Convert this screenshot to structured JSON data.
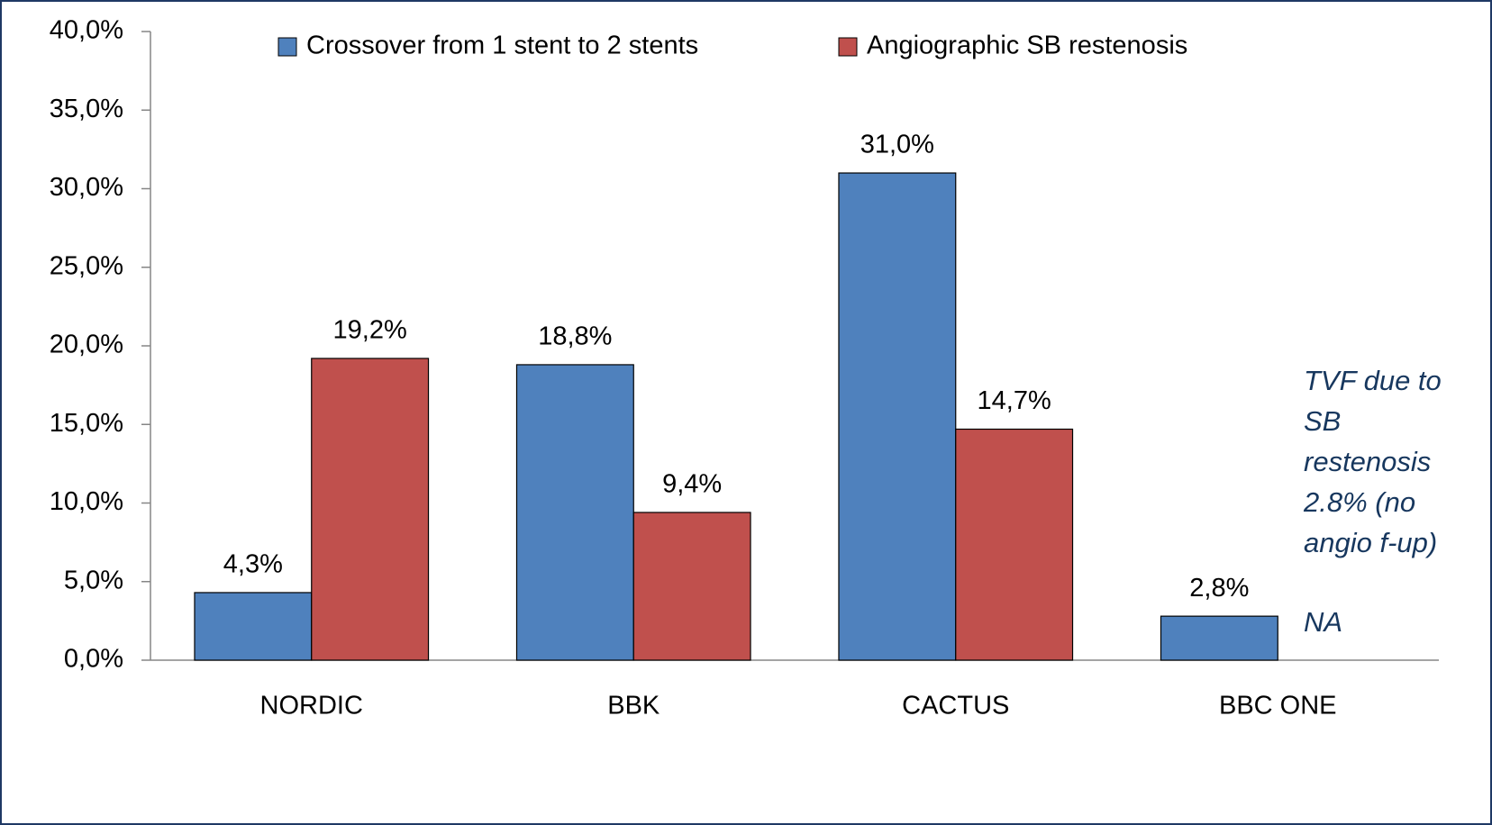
{
  "chart_data": {
    "type": "bar",
    "categories": [
      "NORDIC",
      "BBK",
      "CACTUS",
      "BBC ONE"
    ],
    "series": [
      {
        "name": "Crossover from 1 stent to 2 stents",
        "color": "#4f81bd",
        "values": [
          4.3,
          18.8,
          31.0,
          2.8
        ],
        "value_labels": [
          "4,3%",
          "18,8%",
          "31,0%",
          "2,8%"
        ]
      },
      {
        "name": "Angiographic SB restenosis",
        "color": "#c0504d",
        "values": [
          19.2,
          9.4,
          14.7,
          null
        ],
        "value_labels": [
          "19,2%",
          "9,4%",
          "14,7%",
          null
        ]
      }
    ],
    "ylim": [
      0,
      40
    ],
    "yticks": [
      {
        "value": 0,
        "label": "0,0%"
      },
      {
        "value": 5,
        "label": "5,0%"
      },
      {
        "value": 10,
        "label": "10,0%"
      },
      {
        "value": 15,
        "label": "15,0%"
      },
      {
        "value": 20,
        "label": "20,0%"
      },
      {
        "value": 25,
        "label": "25,0%"
      },
      {
        "value": 30,
        "label": "30,0%"
      },
      {
        "value": 35,
        "label": "35,0%"
      },
      {
        "value": 40,
        "label": "40,0%"
      }
    ],
    "grid": false,
    "legend": "top",
    "annotation_lines": [
      "TVF due to",
      "SB",
      "restenosis",
      "2.8% (no",
      "angio f-up)"
    ],
    "na_label": "NA"
  }
}
